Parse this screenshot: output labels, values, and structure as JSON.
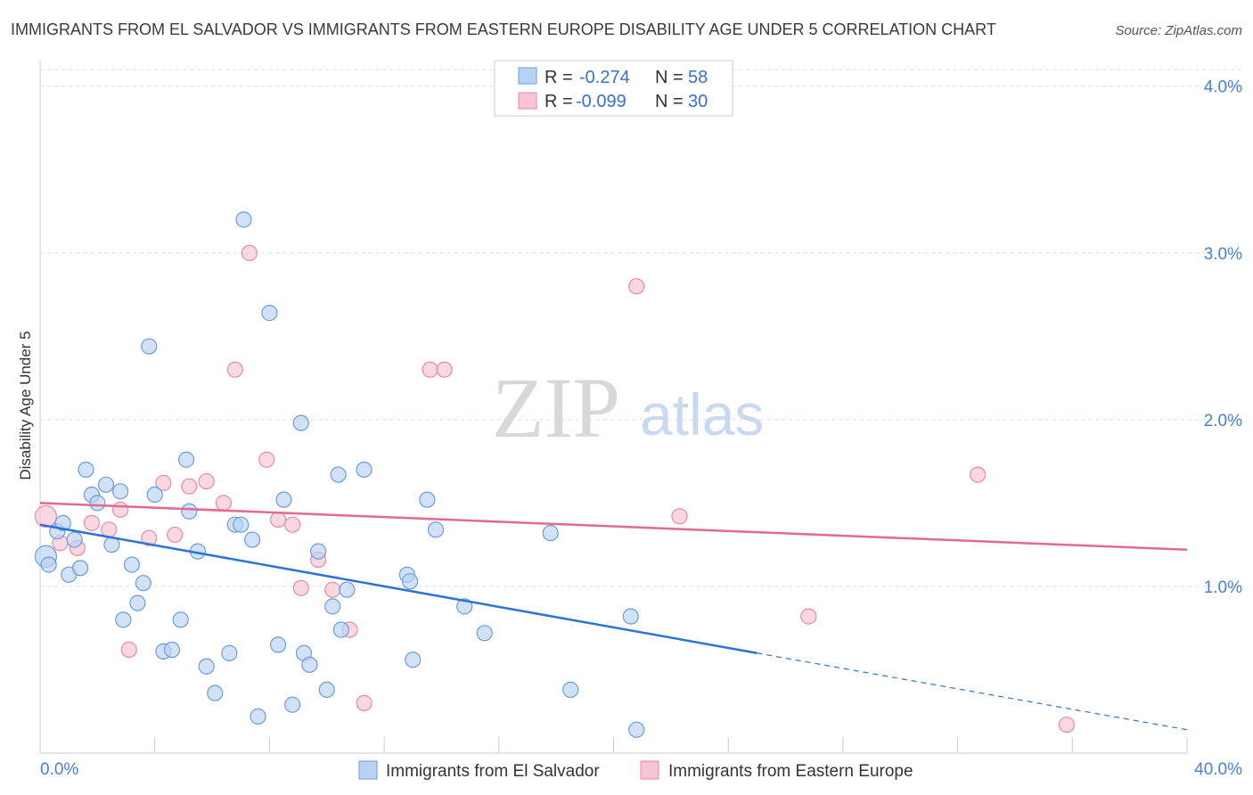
{
  "title": "IMMIGRANTS FROM EL SALVADOR VS IMMIGRANTS FROM EASTERN EUROPE DISABILITY AGE UNDER 5 CORRELATION CHART",
  "source": "Source: ZipAtlas.com",
  "watermark": {
    "zip": "ZIP",
    "atlas": "atlas"
  },
  "legend_box": {
    "rows": [
      {
        "r_label": "R =",
        "r_value": "-0.274",
        "n_label": "N =",
        "n_value": "58",
        "color": "#aac8f0"
      },
      {
        "r_label": "R =",
        "r_value": "-0.099",
        "n_label": "N =",
        "n_value": "30",
        "color": "#f7b6c8"
      }
    ]
  },
  "colors": {
    "blue_fill": "#b8d2f3",
    "blue_stroke": "#6a9ddf",
    "blue_line": "#2f72d6",
    "pink_fill": "#f8c3d3",
    "pink_stroke": "#e98aa8",
    "pink_line": "#e06a93",
    "grid": "#dddddd",
    "tick_label": "#4a7fd4"
  },
  "chart_data": {
    "type": "scatter",
    "title": "IMMIGRANTS FROM EL SALVADOR VS IMMIGRANTS FROM EASTERN EUROPE DISABILITY AGE UNDER 5 CORRELATION CHART",
    "xlabel": "",
    "ylabel": "Disability Age Under 5",
    "xlim": [
      0,
      40
    ],
    "ylim": [
      0,
      4.1
    ],
    "x_tick_labels": [
      "0.0%",
      "40.0%"
    ],
    "y_ticks": [
      1.0,
      2.0,
      3.0,
      4.0
    ],
    "y_tick_labels": [
      "1.0%",
      "2.0%",
      "3.0%",
      "4.0%"
    ],
    "grid": "horizontal dashed",
    "legend_position": "top-center",
    "series": [
      {
        "name": "Immigrants from El Salvador",
        "color": "#aac8f0",
        "R": -0.274,
        "N": 58,
        "trend": {
          "x0": 0,
          "y0": 1.37,
          "x1": 25,
          "y1": 0.6,
          "dashed_to_x": 40,
          "dashed_to_y": 0.14
        },
        "points": [
          [
            0.2,
            1.18
          ],
          [
            0.3,
            1.13
          ],
          [
            0.6,
            1.33
          ],
          [
            0.8,
            1.38
          ],
          [
            1.0,
            1.07
          ],
          [
            1.2,
            1.28
          ],
          [
            1.4,
            1.11
          ],
          [
            1.6,
            1.7
          ],
          [
            1.8,
            1.55
          ],
          [
            2.0,
            1.5
          ],
          [
            2.3,
            1.61
          ],
          [
            2.5,
            1.25
          ],
          [
            2.8,
            1.57
          ],
          [
            2.9,
            0.8
          ],
          [
            3.2,
            1.13
          ],
          [
            3.4,
            0.9
          ],
          [
            3.6,
            1.02
          ],
          [
            3.8,
            2.44
          ],
          [
            4.0,
            1.55
          ],
          [
            4.3,
            0.61
          ],
          [
            4.6,
            0.62
          ],
          [
            4.9,
            0.8
          ],
          [
            5.1,
            1.76
          ],
          [
            5.2,
            1.45
          ],
          [
            5.5,
            1.21
          ],
          [
            5.8,
            0.52
          ],
          [
            6.1,
            0.36
          ],
          [
            6.6,
            0.6
          ],
          [
            6.8,
            1.37
          ],
          [
            7.0,
            1.37
          ],
          [
            7.1,
            3.2
          ],
          [
            7.4,
            1.28
          ],
          [
            7.6,
            0.22
          ],
          [
            8.0,
            2.64
          ],
          [
            8.3,
            0.65
          ],
          [
            8.5,
            1.52
          ],
          [
            8.8,
            0.29
          ],
          [
            9.1,
            1.98
          ],
          [
            9.2,
            0.6
          ],
          [
            9.4,
            0.53
          ],
          [
            9.7,
            1.21
          ],
          [
            10.0,
            0.38
          ],
          [
            10.2,
            0.88
          ],
          [
            10.4,
            1.67
          ],
          [
            10.5,
            0.74
          ],
          [
            10.7,
            0.98
          ],
          [
            11.3,
            1.7
          ],
          [
            12.8,
            1.07
          ],
          [
            12.9,
            1.03
          ],
          [
            13.0,
            0.56
          ],
          [
            13.5,
            1.52
          ],
          [
            13.8,
            1.34
          ],
          [
            14.8,
            0.88
          ],
          [
            15.5,
            0.72
          ],
          [
            17.8,
            1.32
          ],
          [
            18.5,
            0.38
          ],
          [
            20.6,
            0.82
          ],
          [
            20.8,
            0.14
          ]
        ]
      },
      {
        "name": "Immigrants from Eastern Europe",
        "color": "#f7b6c8",
        "R": -0.099,
        "N": 30,
        "trend": {
          "x0": 0,
          "y0": 1.5,
          "x1": 40,
          "y1": 1.22
        },
        "points": [
          [
            0.2,
            1.42
          ],
          [
            0.7,
            1.26
          ],
          [
            1.3,
            1.23
          ],
          [
            1.8,
            1.38
          ],
          [
            2.4,
            1.34
          ],
          [
            2.8,
            1.46
          ],
          [
            3.1,
            0.62
          ],
          [
            3.8,
            1.29
          ],
          [
            4.3,
            1.62
          ],
          [
            4.7,
            1.31
          ],
          [
            5.2,
            1.6
          ],
          [
            5.8,
            1.63
          ],
          [
            6.4,
            1.5
          ],
          [
            6.8,
            2.3
          ],
          [
            7.3,
            3.0
          ],
          [
            7.9,
            1.76
          ],
          [
            8.3,
            1.4
          ],
          [
            8.8,
            1.37
          ],
          [
            9.1,
            0.99
          ],
          [
            9.7,
            1.16
          ],
          [
            10.2,
            0.98
          ],
          [
            10.8,
            0.74
          ],
          [
            11.3,
            0.3
          ],
          [
            13.6,
            2.3
          ],
          [
            14.1,
            2.3
          ],
          [
            20.8,
            2.8
          ],
          [
            22.3,
            1.42
          ],
          [
            26.8,
            0.82
          ],
          [
            32.7,
            1.67
          ],
          [
            35.8,
            0.17
          ]
        ]
      }
    ]
  },
  "bottom_legend": [
    {
      "label": "Immigrants from El Salvador",
      "color": "#aac8f0"
    },
    {
      "label": "Immigrants from Eastern Europe",
      "color": "#f7b6c8"
    }
  ]
}
